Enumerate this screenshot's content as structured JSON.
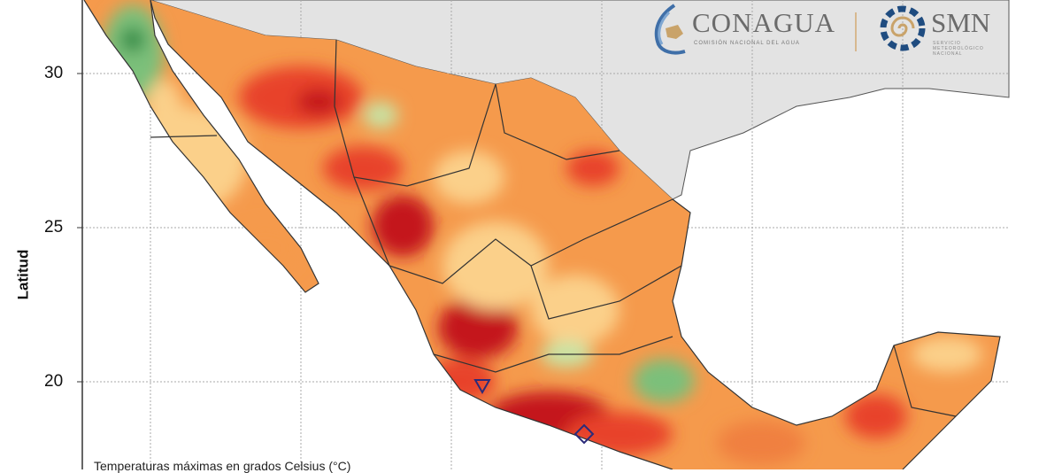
{
  "map": {
    "y_axis_label": "Latitud",
    "lat_ticks": [
      "30",
      "25",
      "20"
    ],
    "caption": "Temperaturas máximas en grados Celsius (°C)",
    "colors": {
      "hot": "#e8432a",
      "very_hot": "#c4161c",
      "warm": "#f59a4c",
      "mild": "#fbd08a",
      "cool": "#c7e3a4",
      "cold": "#5aae61",
      "land_outside": "#e3e3e3",
      "sea": "#ffffff"
    }
  },
  "logos": {
    "conagua": {
      "name": "CONAGUA",
      "subtitle": "COMISIÓN NACIONAL DEL AGUA"
    },
    "smn": {
      "name": "SMN",
      "subtitle": "SERVICIO METEOROLÓGICO NACIONAL"
    }
  }
}
